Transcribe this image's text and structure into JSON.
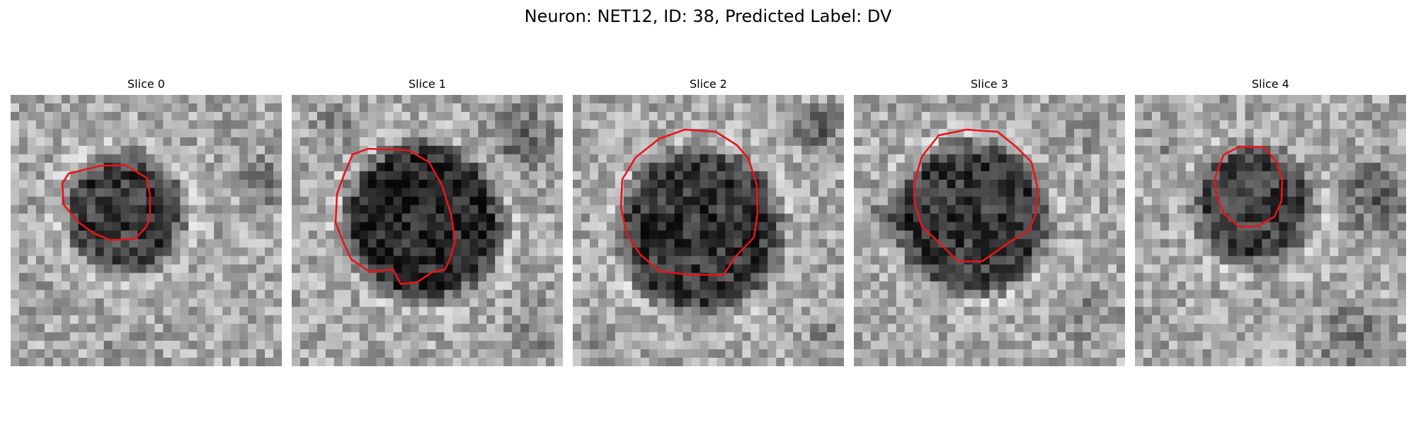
{
  "figure": {
    "title": "Neuron: NET12, ID: 38, Predicted Label: DV"
  },
  "panels": [
    {
      "title": "Slice 0"
    },
    {
      "title": "Slice 1"
    },
    {
      "title": "Slice 2"
    },
    {
      "title": "Slice 3"
    },
    {
      "title": "Slice 4"
    }
  ],
  "colors": {
    "contour": "#e8141a",
    "colormap": "gray"
  }
}
